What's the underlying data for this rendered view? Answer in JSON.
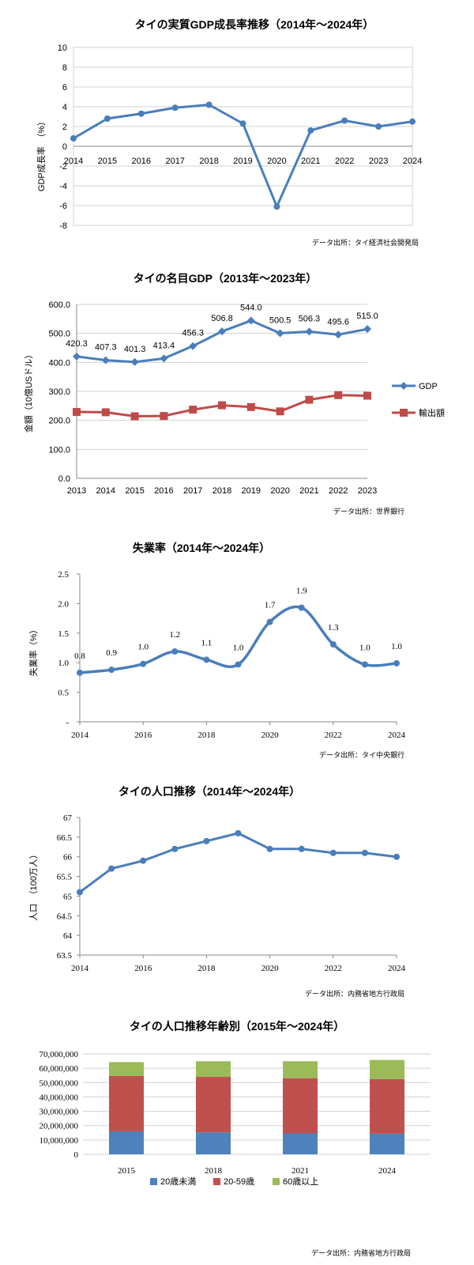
{
  "chart_data": [
    {
      "type": "line",
      "title": "タイの実質GDP成長率推移（2014年～2024年）",
      "ylabel": "GDP成長率　（%）",
      "source": "データ出所：タイ経済社会開発局",
      "x": [
        "2014",
        "2015",
        "2016",
        "2017",
        "2018",
        "2019",
        "2020",
        "2021",
        "2022",
        "2023",
        "2024"
      ],
      "series": [
        {
          "values": [
            0.8,
            2.8,
            3.3,
            3.9,
            4.2,
            2.3,
            -6.1,
            1.6,
            2.6,
            2.0,
            2.5
          ]
        }
      ],
      "ylim": [
        -8,
        10
      ],
      "yticks": [
        "10",
        "8",
        "6",
        "4",
        "2",
        "0",
        "-2",
        "-4",
        "-6",
        "-8"
      ],
      "grid": true,
      "color": "#4a7ebb"
    },
    {
      "type": "line",
      "title": "タイの名目GDP（2013年～2023年）",
      "ylabel": "金額（10億USドル）",
      "source": "データ出所：世界銀行",
      "x": [
        "2013",
        "2014",
        "2015",
        "2016",
        "2017",
        "2018",
        "2019",
        "2020",
        "2021",
        "2022",
        "2023"
      ],
      "series": [
        {
          "name": "GDP",
          "values": [
            420.3,
            407.3,
            401.3,
            413.4,
            456.3,
            506.8,
            544.0,
            500.5,
            506.3,
            495.6,
            515.0
          ],
          "labels": [
            "420.3",
            "407.3",
            "401.3",
            "413.4",
            "456.3",
            "506.8",
            "544.0",
            "500.5",
            "506.3",
            "495.6",
            "515.0"
          ],
          "color": "#4a7ebb"
        },
        {
          "name": "輸出額",
          "values": [
            229,
            228,
            214,
            215,
            237,
            252,
            246,
            231,
            271,
            287,
            285
          ],
          "color": "#be4b48"
        }
      ],
      "ylim": [
        0,
        600
      ],
      "yticks": [
        "600.0",
        "500.0",
        "400.0",
        "300.0",
        "200.0",
        "100.0",
        "0.0"
      ],
      "grid": true,
      "legend": "right"
    },
    {
      "type": "line",
      "title": "失業率（2014年～2024年）",
      "ylabel": "失業率（%）",
      "source": "データ出所：タイ中央銀行",
      "x": [
        2014,
        2015,
        2016,
        2017,
        2018,
        2019,
        2020,
        2021,
        2022,
        2023,
        2024
      ],
      "xticks": [
        "2014",
        "2016",
        "2018",
        "2020",
        "2022",
        "2024"
      ],
      "series": [
        {
          "values": [
            0.83,
            0.88,
            0.98,
            1.19,
            1.05,
            0.97,
            1.69,
            1.93,
            1.31,
            0.97,
            0.99
          ],
          "labels": [
            "0.8",
            "0.9",
            "1.0",
            "1.2",
            "1.1",
            "1.0",
            "1.7",
            "1.9",
            "1.3",
            "1.0",
            "1.0"
          ]
        }
      ],
      "ylim": [
        0,
        2.5
      ],
      "yticks": [
        "2.5",
        "2.0",
        "1.5",
        "1.0",
        "0.5",
        "-"
      ],
      "grid": false,
      "color": "#4a7ebb"
    },
    {
      "type": "line",
      "title": "タイの人口推移（2014年～2024年）",
      "ylabel": "人口　（100万人）",
      "source": "データ出所：内務省地方行政局",
      "x": [
        2014,
        2015,
        2016,
        2017,
        2018,
        2019,
        2020,
        2021,
        2022,
        2023,
        2024
      ],
      "xticks": [
        "2014",
        "2016",
        "2018",
        "2020",
        "2022",
        "2024"
      ],
      "series": [
        {
          "values": [
            65.1,
            65.7,
            65.9,
            66.2,
            66.4,
            66.6,
            66.2,
            66.2,
            66.1,
            66.1,
            66.0
          ]
        }
      ],
      "ylim": [
        63.5,
        67
      ],
      "yticks": [
        "67",
        "66.5",
        "66",
        "65.5",
        "65",
        "64.5",
        "64",
        "63.5"
      ],
      "grid": false,
      "color": "#4a7ebb"
    },
    {
      "type": "bar",
      "stacked": true,
      "title": "タイの人口推移年齢別（2015年～2024年）",
      "source": "データ出所：内務省地方行政局",
      "categories": [
        "2015",
        "2018",
        "2021",
        "2024"
      ],
      "series": [
        {
          "name": "20歳未満",
          "values": [
            16000000,
            15300000,
            14600000,
            14400000
          ],
          "color": "#4f81bd"
        },
        {
          "name": "20-59歳",
          "values": [
            38600000,
            38700000,
            38500000,
            38000000
          ],
          "color": "#c0504d"
        },
        {
          "name": "60歳以上",
          "values": [
            9700000,
            10900000,
            11800000,
            13400000
          ],
          "color": "#9bbb59"
        }
      ],
      "ylim": [
        0,
        70000000
      ],
      "yticks": [
        "70,000,000",
        "60,000,000",
        "50,000,000",
        "40,000,000",
        "30,000,000",
        "20,000,000",
        "10,000,000",
        "0"
      ],
      "grid": true,
      "legend": "bottom"
    }
  ]
}
